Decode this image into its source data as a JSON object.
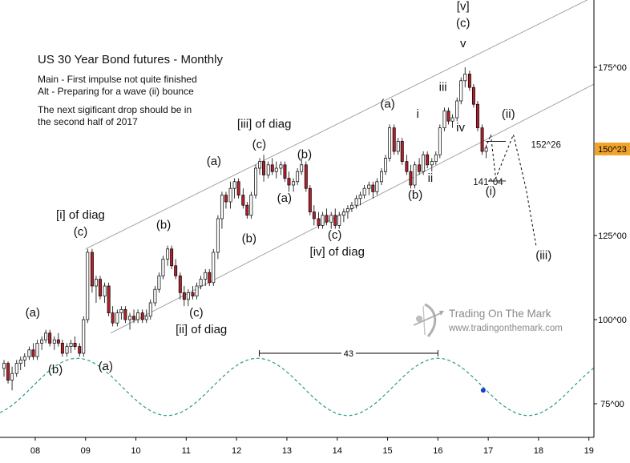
{
  "title": "US 30 Year Bond futures - Monthly",
  "notes": [
    "Main - First impulse not quite finished",
    "Alt - Preparing for a wave (ii) bounce",
    "",
    "The next sigificant drop should be in",
    "the second half of 2017"
  ],
  "logo": {
    "brand": "Trading On The Mark",
    "url": "www.tradingonthemark.com"
  },
  "colors": {
    "down": "#b5202a",
    "up": "#ffffff",
    "candle_outline": "#000000",
    "channel": "#9a9a9a",
    "cycle": "#2a9a8a",
    "marker": "#1a3fd0",
    "last_price_box": "#f2a42a"
  },
  "chart_data": {
    "type": "candlestick",
    "title": "US 30 Year Bond futures - Monthly",
    "x_axis": {
      "ticks": [
        "08",
        "09",
        "10",
        "11",
        "12",
        "13",
        "14",
        "15",
        "16",
        "17",
        "18",
        "19"
      ],
      "range": [
        2007.3,
        2019.1
      ]
    },
    "y_axis": {
      "ticks": [
        "75^00",
        "100^00",
        "125^00",
        "150^23",
        "175^00"
      ],
      "tick_values": [
        75,
        100,
        125,
        150.72,
        175
      ],
      "range": [
        65,
        195
      ],
      "grid": false
    },
    "last_price": "150^23",
    "candles": [
      {
        "t": 2007.38,
        "o": 85.5,
        "h": 88,
        "l": 83,
        "c": 87
      },
      {
        "t": 2007.46,
        "o": 87,
        "h": 87.6,
        "l": 81,
        "c": 82
      },
      {
        "t": 2007.54,
        "o": 82,
        "h": 86,
        "l": 79,
        "c": 84
      },
      {
        "t": 2007.63,
        "o": 84,
        "h": 88,
        "l": 83,
        "c": 87
      },
      {
        "t": 2007.71,
        "o": 87,
        "h": 89,
        "l": 85,
        "c": 88
      },
      {
        "t": 2007.79,
        "o": 88,
        "h": 90,
        "l": 86,
        "c": 89
      },
      {
        "t": 2007.88,
        "o": 89,
        "h": 92,
        "l": 88,
        "c": 91
      },
      {
        "t": 2007.96,
        "o": 91,
        "h": 93,
        "l": 88,
        "c": 89
      },
      {
        "t": 2008.04,
        "o": 89,
        "h": 94,
        "l": 88,
        "c": 93
      },
      {
        "t": 2008.13,
        "o": 93,
        "h": 95,
        "l": 91,
        "c": 94
      },
      {
        "t": 2008.21,
        "o": 94,
        "h": 97,
        "l": 93,
        "c": 96
      },
      {
        "t": 2008.29,
        "o": 96,
        "h": 97,
        "l": 92,
        "c": 93
      },
      {
        "t": 2008.38,
        "o": 93,
        "h": 95,
        "l": 91,
        "c": 94
      },
      {
        "t": 2008.46,
        "o": 94,
        "h": 96,
        "l": 92,
        "c": 93
      },
      {
        "t": 2008.54,
        "o": 93,
        "h": 94,
        "l": 89,
        "c": 90
      },
      {
        "t": 2008.63,
        "o": 90,
        "h": 93,
        "l": 89,
        "c": 92
      },
      {
        "t": 2008.71,
        "o": 92,
        "h": 94,
        "l": 90,
        "c": 93
      },
      {
        "t": 2008.79,
        "o": 93,
        "h": 95,
        "l": 91,
        "c": 92
      },
      {
        "t": 2008.88,
        "o": 92,
        "h": 93,
        "l": 89,
        "c": 90
      },
      {
        "t": 2008.96,
        "o": 90,
        "h": 101,
        "l": 89,
        "c": 100
      },
      {
        "t": 2009.04,
        "o": 100,
        "h": 121,
        "l": 99,
        "c": 120
      },
      {
        "t": 2009.13,
        "o": 120,
        "h": 121,
        "l": 108,
        "c": 110
      },
      {
        "t": 2009.21,
        "o": 110,
        "h": 113,
        "l": 105,
        "c": 112
      },
      {
        "t": 2009.29,
        "o": 112,
        "h": 113,
        "l": 106,
        "c": 107
      },
      {
        "t": 2009.38,
        "o": 107,
        "h": 111,
        "l": 105,
        "c": 110
      },
      {
        "t": 2009.46,
        "o": 110,
        "h": 111,
        "l": 101,
        "c": 102
      },
      {
        "t": 2009.54,
        "o": 102,
        "h": 104,
        "l": 98,
        "c": 99
      },
      {
        "t": 2009.63,
        "o": 99,
        "h": 103,
        "l": 98,
        "c": 102
      },
      {
        "t": 2009.71,
        "o": 102,
        "h": 104,
        "l": 100,
        "c": 103
      },
      {
        "t": 2009.79,
        "o": 103,
        "h": 104,
        "l": 99,
        "c": 100
      },
      {
        "t": 2009.88,
        "o": 100,
        "h": 102,
        "l": 97,
        "c": 101
      },
      {
        "t": 2009.96,
        "o": 101,
        "h": 103,
        "l": 99,
        "c": 100
      },
      {
        "t": 2010.04,
        "o": 100,
        "h": 103,
        "l": 99,
        "c": 102
      },
      {
        "t": 2010.13,
        "o": 102,
        "h": 103,
        "l": 99,
        "c": 100
      },
      {
        "t": 2010.21,
        "o": 100,
        "h": 103,
        "l": 99,
        "c": 101
      },
      {
        "t": 2010.29,
        "o": 101,
        "h": 106,
        "l": 100,
        "c": 105
      },
      {
        "t": 2010.38,
        "o": 105,
        "h": 110,
        "l": 104,
        "c": 109
      },
      {
        "t": 2010.46,
        "o": 109,
        "h": 114,
        "l": 108,
        "c": 113
      },
      {
        "t": 2010.54,
        "o": 113,
        "h": 119,
        "l": 112,
        "c": 118
      },
      {
        "t": 2010.63,
        "o": 118,
        "h": 122,
        "l": 116,
        "c": 121
      },
      {
        "t": 2010.71,
        "o": 121,
        "h": 122,
        "l": 115,
        "c": 116
      },
      {
        "t": 2010.79,
        "o": 116,
        "h": 118,
        "l": 112,
        "c": 113
      },
      {
        "t": 2010.88,
        "o": 113,
        "h": 114,
        "l": 106,
        "c": 108
      },
      {
        "t": 2010.96,
        "o": 108,
        "h": 110,
        "l": 104,
        "c": 106
      },
      {
        "t": 2011.04,
        "o": 106,
        "h": 109,
        "l": 104,
        "c": 108
      },
      {
        "t": 2011.13,
        "o": 108,
        "h": 110,
        "l": 106,
        "c": 107
      },
      {
        "t": 2011.21,
        "o": 107,
        "h": 111,
        "l": 106,
        "c": 110
      },
      {
        "t": 2011.29,
        "o": 110,
        "h": 113,
        "l": 109,
        "c": 112
      },
      {
        "t": 2011.38,
        "o": 112,
        "h": 115,
        "l": 110,
        "c": 114
      },
      {
        "t": 2011.46,
        "o": 114,
        "h": 115,
        "l": 110,
        "c": 111
      },
      {
        "t": 2011.54,
        "o": 111,
        "h": 121,
        "l": 110,
        "c": 120
      },
      {
        "t": 2011.63,
        "o": 120,
        "h": 131,
        "l": 118,
        "c": 130
      },
      {
        "t": 2011.71,
        "o": 130,
        "h": 138,
        "l": 127,
        "c": 137
      },
      {
        "t": 2011.79,
        "o": 137,
        "h": 138,
        "l": 133,
        "c": 135
      },
      {
        "t": 2011.88,
        "o": 135,
        "h": 141,
        "l": 133,
        "c": 139
      },
      {
        "t": 2011.96,
        "o": 139,
        "h": 142,
        "l": 136,
        "c": 141
      },
      {
        "t": 2012.04,
        "o": 141,
        "h": 142,
        "l": 136,
        "c": 137
      },
      {
        "t": 2012.13,
        "o": 137,
        "h": 139,
        "l": 133,
        "c": 134
      },
      {
        "t": 2012.21,
        "o": 134,
        "h": 135,
        "l": 130,
        "c": 131
      },
      {
        "t": 2012.29,
        "o": 131,
        "h": 138,
        "l": 130,
        "c": 137
      },
      {
        "t": 2012.38,
        "o": 137,
        "h": 146,
        "l": 136,
        "c": 145
      },
      {
        "t": 2012.46,
        "o": 145,
        "h": 148,
        "l": 143,
        "c": 147
      },
      {
        "t": 2012.54,
        "o": 147,
        "h": 149,
        "l": 141,
        "c": 143
      },
      {
        "t": 2012.63,
        "o": 143,
        "h": 147,
        "l": 142,
        "c": 146
      },
      {
        "t": 2012.71,
        "o": 146,
        "h": 148,
        "l": 143,
        "c": 144
      },
      {
        "t": 2012.79,
        "o": 144,
        "h": 147,
        "l": 142,
        "c": 145
      },
      {
        "t": 2012.88,
        "o": 145,
        "h": 147,
        "l": 143,
        "c": 146
      },
      {
        "t": 2012.96,
        "o": 146,
        "h": 147,
        "l": 141,
        "c": 142
      },
      {
        "t": 2013.04,
        "o": 142,
        "h": 144,
        "l": 138,
        "c": 140
      },
      {
        "t": 2013.13,
        "o": 140,
        "h": 142,
        "l": 138,
        "c": 141
      },
      {
        "t": 2013.21,
        "o": 141,
        "h": 145,
        "l": 140,
        "c": 144
      },
      {
        "t": 2013.29,
        "o": 144,
        "h": 148,
        "l": 143,
        "c": 146
      },
      {
        "t": 2013.38,
        "o": 146,
        "h": 147,
        "l": 138,
        "c": 139
      },
      {
        "t": 2013.46,
        "o": 139,
        "h": 140,
        "l": 131,
        "c": 132
      },
      {
        "t": 2013.54,
        "o": 132,
        "h": 134,
        "l": 128,
        "c": 130
      },
      {
        "t": 2013.63,
        "o": 130,
        "h": 132,
        "l": 127,
        "c": 128
      },
      {
        "t": 2013.71,
        "o": 128,
        "h": 132,
        "l": 127,
        "c": 131
      },
      {
        "t": 2013.79,
        "o": 131,
        "h": 133,
        "l": 128,
        "c": 129
      },
      {
        "t": 2013.88,
        "o": 129,
        "h": 132,
        "l": 127,
        "c": 131
      },
      {
        "t": 2013.96,
        "o": 131,
        "h": 133,
        "l": 127,
        "c": 128
      },
      {
        "t": 2014.04,
        "o": 128,
        "h": 132,
        "l": 127,
        "c": 131
      },
      {
        "t": 2014.13,
        "o": 131,
        "h": 133,
        "l": 129,
        "c": 132
      },
      {
        "t": 2014.21,
        "o": 132,
        "h": 134,
        "l": 130,
        "c": 133
      },
      {
        "t": 2014.29,
        "o": 133,
        "h": 135,
        "l": 132,
        "c": 134
      },
      {
        "t": 2014.38,
        "o": 134,
        "h": 137,
        "l": 133,
        "c": 136
      },
      {
        "t": 2014.46,
        "o": 136,
        "h": 138,
        "l": 134,
        "c": 137
      },
      {
        "t": 2014.54,
        "o": 137,
        "h": 140,
        "l": 136,
        "c": 139
      },
      {
        "t": 2014.63,
        "o": 139,
        "h": 141,
        "l": 137,
        "c": 140
      },
      {
        "t": 2014.71,
        "o": 140,
        "h": 141,
        "l": 136,
        "c": 138
      },
      {
        "t": 2014.79,
        "o": 138,
        "h": 142,
        "l": 137,
        "c": 141
      },
      {
        "t": 2014.88,
        "o": 141,
        "h": 145,
        "l": 140,
        "c": 144
      },
      {
        "t": 2014.96,
        "o": 144,
        "h": 149,
        "l": 143,
        "c": 148
      },
      {
        "t": 2015.04,
        "o": 148,
        "h": 158,
        "l": 147,
        "c": 157
      },
      {
        "t": 2015.13,
        "o": 157,
        "h": 158,
        "l": 149,
        "c": 150
      },
      {
        "t": 2015.21,
        "o": 150,
        "h": 154,
        "l": 149,
        "c": 153
      },
      {
        "t": 2015.29,
        "o": 153,
        "h": 154,
        "l": 146,
        "c": 147
      },
      {
        "t": 2015.38,
        "o": 147,
        "h": 149,
        "l": 143,
        "c": 144
      },
      {
        "t": 2015.46,
        "o": 144,
        "h": 146,
        "l": 139,
        "c": 140
      },
      {
        "t": 2015.54,
        "o": 140,
        "h": 147,
        "l": 139,
        "c": 146
      },
      {
        "t": 2015.63,
        "o": 146,
        "h": 148,
        "l": 143,
        "c": 144
      },
      {
        "t": 2015.71,
        "o": 144,
        "h": 150,
        "l": 143,
        "c": 149
      },
      {
        "t": 2015.79,
        "o": 149,
        "h": 150,
        "l": 145,
        "c": 146
      },
      {
        "t": 2015.88,
        "o": 146,
        "h": 148,
        "l": 144,
        "c": 147
      },
      {
        "t": 2015.96,
        "o": 147,
        "h": 150,
        "l": 146,
        "c": 149
      },
      {
        "t": 2016.04,
        "o": 149,
        "h": 158,
        "l": 148,
        "c": 157
      },
      {
        "t": 2016.13,
        "o": 157,
        "h": 163,
        "l": 156,
        "c": 162
      },
      {
        "t": 2016.21,
        "o": 162,
        "h": 163,
        "l": 158,
        "c": 159
      },
      {
        "t": 2016.29,
        "o": 159,
        "h": 161,
        "l": 157,
        "c": 160
      },
      {
        "t": 2016.38,
        "o": 160,
        "h": 166,
        "l": 159,
        "c": 165
      },
      {
        "t": 2016.46,
        "o": 165,
        "h": 172,
        "l": 164,
        "c": 171
      },
      {
        "t": 2016.54,
        "o": 171,
        "h": 175,
        "l": 169,
        "c": 173
      },
      {
        "t": 2016.63,
        "o": 173,
        "h": 174,
        "l": 168,
        "c": 169
      },
      {
        "t": 2016.71,
        "o": 169,
        "h": 170,
        "l": 163,
        "c": 164
      },
      {
        "t": 2016.79,
        "o": 164,
        "h": 165,
        "l": 156,
        "c": 157
      },
      {
        "t": 2016.88,
        "o": 157,
        "h": 158,
        "l": 149,
        "c": 150
      },
      {
        "t": 2016.96,
        "o": 150,
        "h": 152,
        "l": 148,
        "c": 151
      }
    ],
    "channel_lines": [
      {
        "from": [
          2009.0,
          121
        ],
        "to": [
          2019.1,
          196
        ]
      },
      {
        "from": [
          2009.5,
          96
        ],
        "to": [
          2019.1,
          170
        ]
      },
      {
        "from": [
          2016.95,
          153
        ],
        "to": [
          2017.35,
          153
        ]
      },
      {
        "from": [
          2017.0,
          141.2
        ],
        "to": [
          2017.35,
          141.2
        ]
      }
    ],
    "projection_path": [
      [
        2016.95,
        151
      ],
      [
        2017.05,
        155
      ],
      [
        2017.15,
        142
      ],
      [
        2017.5,
        155
      ],
      [
        2017.75,
        139
      ],
      [
        2017.95,
        122
      ]
    ],
    "cycle": {
      "period_months": 43,
      "amplitude": 8.5,
      "center": 80,
      "peak_x": 2016.0,
      "span_label": "43",
      "span_from": 2012.45,
      "span_to": 2016.0,
      "span_y": 90
    },
    "marker_point": [
      2016.9,
      79
    ],
    "wave_labels": [
      {
        "text": "(a)",
        "x": 2007.95,
        "y": 101
      },
      {
        "text": "(b)",
        "x": 2008.4,
        "y": 84
      },
      {
        "text": "[i] of diag",
        "x": 2008.9,
        "y": 130
      },
      {
        "text": "(c)",
        "x": 2008.9,
        "y": 125
      },
      {
        "text": "(a)",
        "x": 2009.4,
        "y": 85
      },
      {
        "text": "(b)",
        "x": 2010.55,
        "y": 127
      },
      {
        "text": "(c)",
        "x": 2011.2,
        "y": 101
      },
      {
        "text": "[ii] of diag",
        "x": 2011.3,
        "y": 96
      },
      {
        "text": "(a)",
        "x": 2011.55,
        "y": 146
      },
      {
        "text": "[iii] of diag",
        "x": 2012.55,
        "y": 157
      },
      {
        "text": "(c)",
        "x": 2012.45,
        "y": 151
      },
      {
        "text": "(b)",
        "x": 2012.25,
        "y": 123
      },
      {
        "text": "(a)",
        "x": 2012.95,
        "y": 135
      },
      {
        "text": "(b)",
        "x": 2013.35,
        "y": 148
      },
      {
        "text": "(c)",
        "x": 2013.95,
        "y": 124
      },
      {
        "text": "[iv] of diag",
        "x": 2014.0,
        "y": 119
      },
      {
        "text": "(a)",
        "x": 2015.0,
        "y": 163
      },
      {
        "text": "i",
        "x": 2015.6,
        "y": 160
      },
      {
        "text": "(b)",
        "x": 2015.55,
        "y": 136
      },
      {
        "text": "ii",
        "x": 2015.85,
        "y": 141
      },
      {
        "text": "iii",
        "x": 2016.1,
        "y": 168
      },
      {
        "text": "iv",
        "x": 2016.45,
        "y": 156
      },
      {
        "text": "v",
        "x": 2016.5,
        "y": 181
      },
      {
        "text": "(c)",
        "x": 2016.5,
        "y": 187
      },
      {
        "text": "[v]",
        "x": 2016.5,
        "y": 192
      },
      {
        "text": "(i)",
        "x": 2017.05,
        "y": 137
      },
      {
        "text": "(ii)",
        "x": 2017.4,
        "y": 160
      },
      {
        "text": "(iii)",
        "x": 2018.1,
        "y": 118
      }
    ],
    "level_labels": [
      {
        "text": "152^26",
        "x": 2017.85,
        "y": 152
      },
      {
        "text": "141^04",
        "x": 2016.7,
        "y": 141
      }
    ]
  }
}
